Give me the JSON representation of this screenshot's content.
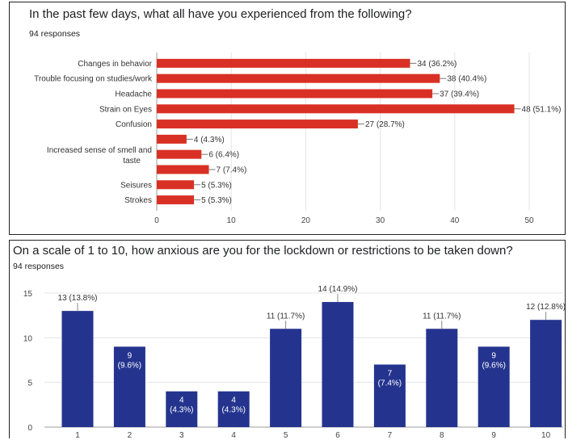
{
  "charts": [
    {
      "question": "In the past few days,  what all have you experienced from the following?",
      "responses": "94 responses"
    },
    {
      "question": "On a scale of 1 to 10, how anxious are you for the lockdown or restrictions to be taken down?",
      "responses": "94 responses"
    }
  ],
  "colors": {
    "red": "#d93025",
    "navy": "#24348e",
    "grid": "#e4e4e4",
    "axis": "#9e9e9e"
  },
  "chart_data": [
    {
      "type": "bar",
      "orientation": "horizontal",
      "categories": [
        "Changes in behavior",
        "Trouble focusing on studies/work",
        "Headache",
        "Strain on Eyes",
        "Confusion",
        "",
        "Increased sense of smell and taste",
        "",
        "Seisures",
        "Strokes"
      ],
      "values": [
        34,
        38,
        37,
        48,
        27,
        4,
        6,
        7,
        5,
        5
      ],
      "data_labels": [
        "34 (36.2%)",
        "38 (40.4%)",
        "37 (39.4%)",
        "48 (51.1%)",
        "27 (28.7%)",
        "4 (4.3%)",
        "6 (6.4%)",
        "7 (7.4%)",
        "5 (5.3%)",
        "5 (5.3%)"
      ],
      "xlim": [
        0,
        52
      ],
      "xticks": [
        0,
        10,
        20,
        30,
        40,
        50
      ],
      "grid": true,
      "color": "#d93025"
    },
    {
      "type": "bar",
      "orientation": "vertical",
      "categories": [
        "1",
        "2",
        "3",
        "4",
        "5",
        "6",
        "7",
        "8",
        "9",
        "10"
      ],
      "values": [
        13,
        9,
        4,
        4,
        11,
        14,
        7,
        11,
        9,
        12
      ],
      "data_labels": [
        "13 (13.8%)",
        "9\n(9.6%)",
        "4\n(4.3%)",
        "4\n(4.3%)",
        "11 (11.7%)",
        "14 (14.9%)",
        "7\n(7.4%)",
        "11 (11.7%)",
        "9\n(9.6%)",
        "12 (12.8%)"
      ],
      "ylim": [
        0,
        15
      ],
      "yticks": [
        0,
        5,
        10,
        15
      ],
      "grid": true,
      "color": "#24348e"
    }
  ]
}
